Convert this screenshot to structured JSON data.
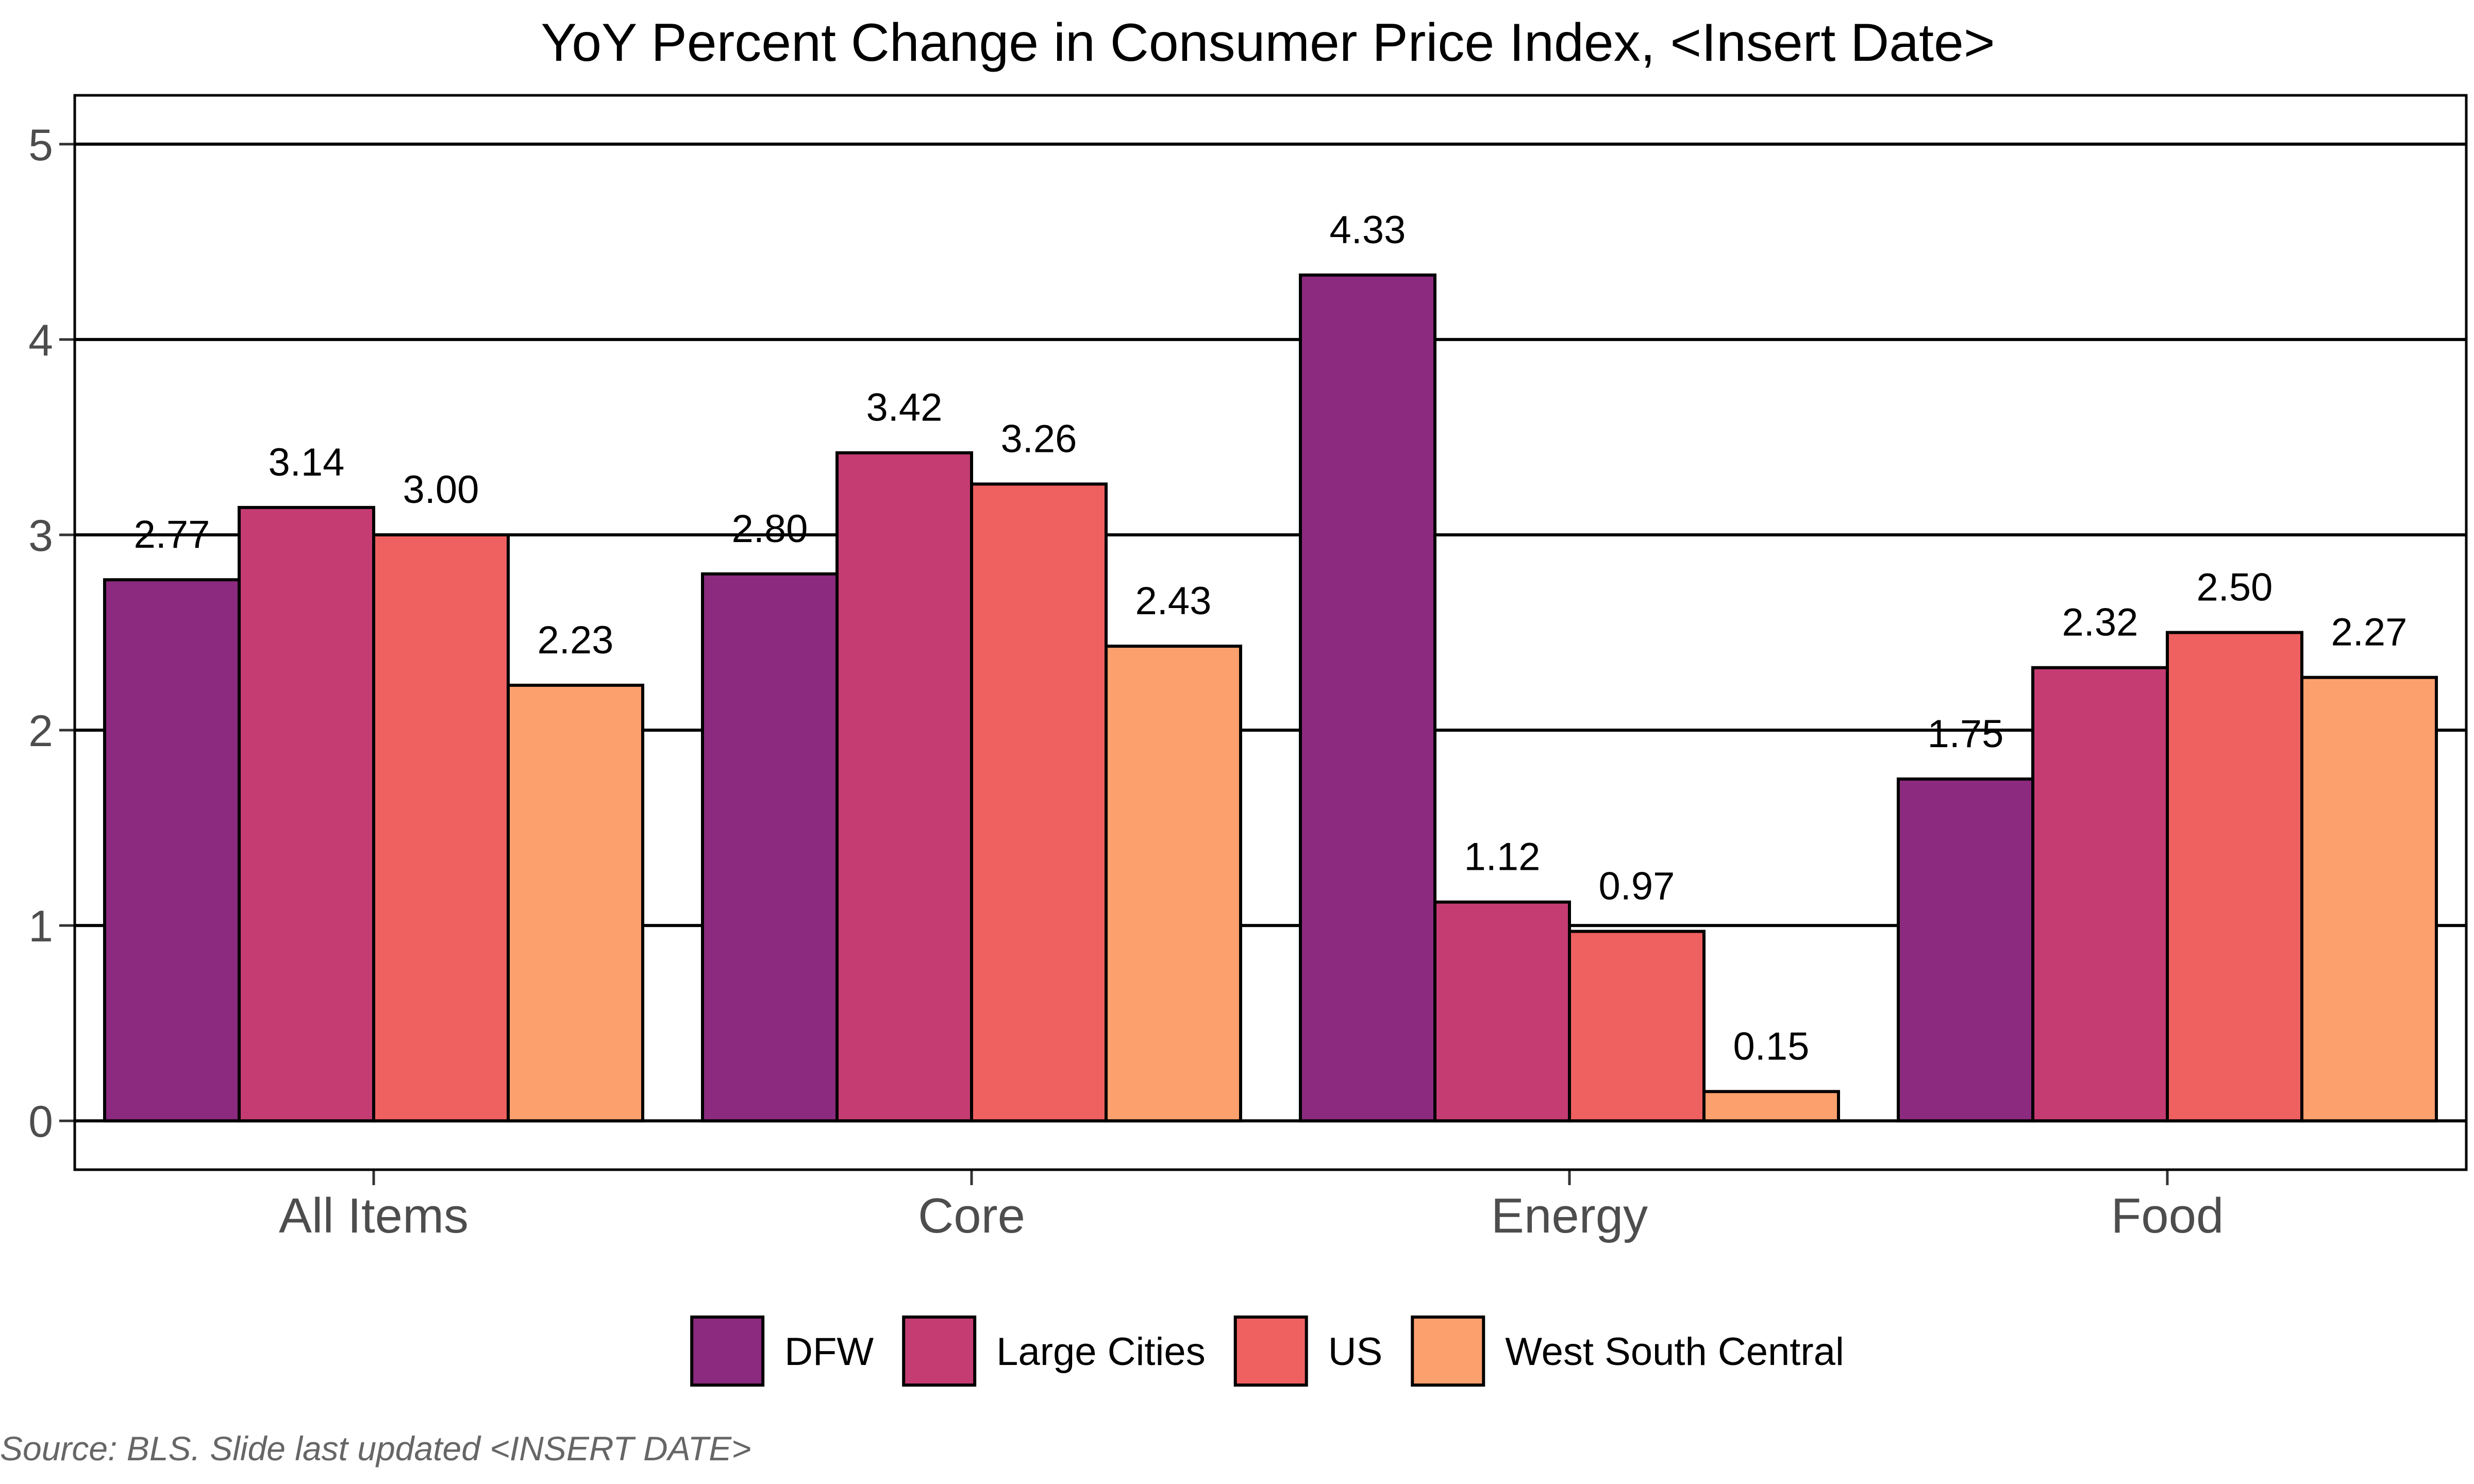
{
  "chart_data": {
    "type": "bar",
    "title": "YoY Percent Change in Consumer Price Index, <Insert Date>",
    "xlabel": "",
    "ylabel": "",
    "categories": [
      "All Items",
      "Core",
      "Energy",
      "Food"
    ],
    "series": [
      {
        "name": "DFW",
        "color": "#8B2A7E",
        "values": [
          2.77,
          2.8,
          4.33,
          1.75
        ],
        "labels": [
          "2.77",
          "2.80",
          "4.33",
          "1.75"
        ]
      },
      {
        "name": "Large Cities",
        "color": "#C43C72",
        "values": [
          3.14,
          3.42,
          1.12,
          2.32
        ],
        "labels": [
          "3.14",
          "3.42",
          "1.12",
          "2.32"
        ]
      },
      {
        "name": "US",
        "color": "#EF6060",
        "values": [
          3.0,
          3.26,
          0.97,
          2.5
        ],
        "labels": [
          "3.00",
          "3.26",
          "0.97",
          "2.50"
        ]
      },
      {
        "name": "West South Central",
        "color": "#FCA06E",
        "values": [
          2.23,
          2.43,
          0.15,
          2.27
        ],
        "labels": [
          "2.23",
          "2.43",
          "0.15",
          "2.27"
        ]
      }
    ],
    "ylim": [
      -0.25,
      5.25
    ],
    "yticks": [
      0,
      1,
      2,
      3,
      4,
      5
    ],
    "grid": "horizontal-major",
    "legend_position": "bottom",
    "caption": "Source: BLS. Slide last updated <INSERT DATE>"
  }
}
